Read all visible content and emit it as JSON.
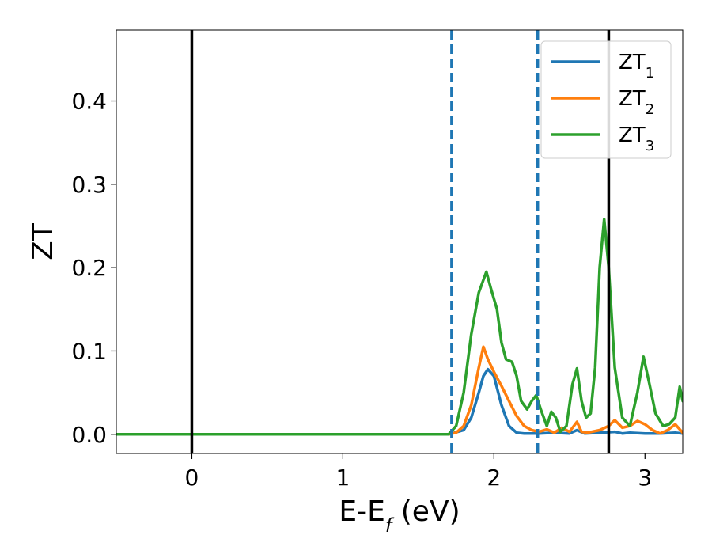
{
  "chart_data": {
    "type": "line",
    "xlabel": {
      "main": "E-E",
      "sub": "f",
      "unit": " (eV)"
    },
    "ylabel": "ZT",
    "xlim": [
      -0.5,
      3.25
    ],
    "ylim": [
      -0.023,
      0.485
    ],
    "x_ticks": [
      0,
      1,
      2,
      3
    ],
    "x_tick_labels": [
      "0",
      "1",
      "2",
      "3"
    ],
    "y_ticks": [
      0.0,
      0.1,
      0.2,
      0.3,
      0.4
    ],
    "y_tick_labels": [
      "0.0",
      "0.1",
      "0.2",
      "0.3",
      "0.4"
    ],
    "grid": false,
    "legend_position": "top-right",
    "vertical_lines": [
      {
        "x": 0.0,
        "style": "solid",
        "color": "#000000"
      },
      {
        "x": 1.72,
        "style": "dashed",
        "color": "#1f77b4"
      },
      {
        "x": 2.29,
        "style": "dashed",
        "color": "#1f77b4"
      },
      {
        "x": 2.76,
        "style": "solid",
        "color": "#000000"
      }
    ],
    "series": [
      {
        "name": {
          "main": "ZT",
          "sub": "1"
        },
        "color": "#1f77b4",
        "x": [
          -0.5,
          1.7,
          1.8,
          1.85,
          1.9,
          1.93,
          1.96,
          2.0,
          2.05,
          2.1,
          2.15,
          2.2,
          2.3,
          2.4,
          2.5,
          2.55,
          2.6,
          2.7,
          2.8,
          2.85,
          2.9,
          3.0,
          3.1,
          3.2,
          3.25
        ],
        "y": [
          0.0,
          0.0,
          0.005,
          0.02,
          0.05,
          0.07,
          0.078,
          0.07,
          0.035,
          0.01,
          0.002,
          0.001,
          0.001,
          0.002,
          0.001,
          0.005,
          0.001,
          0.002,
          0.003,
          0.001,
          0.002,
          0.001,
          0.001,
          0.002,
          0.001
        ]
      },
      {
        "name": {
          "main": "ZT",
          "sub": "2"
        },
        "color": "#ff7f0e",
        "x": [
          -0.5,
          1.7,
          1.75,
          1.8,
          1.85,
          1.9,
          1.93,
          1.96,
          2.0,
          2.05,
          2.1,
          2.15,
          2.2,
          2.25,
          2.3,
          2.35,
          2.4,
          2.45,
          2.5,
          2.55,
          2.58,
          2.62,
          2.7,
          2.76,
          2.8,
          2.85,
          2.9,
          2.95,
          3.0,
          3.05,
          3.1,
          3.15,
          3.2,
          3.25
        ],
        "y": [
          0.0,
          0.0,
          0.002,
          0.01,
          0.035,
          0.08,
          0.105,
          0.09,
          0.075,
          0.058,
          0.04,
          0.022,
          0.01,
          0.005,
          0.003,
          0.006,
          0.002,
          0.008,
          0.003,
          0.015,
          0.003,
          0.002,
          0.005,
          0.01,
          0.017,
          0.008,
          0.01,
          0.016,
          0.012,
          0.005,
          0.001,
          0.005,
          0.012,
          0.002
        ]
      },
      {
        "name": {
          "main": "ZT",
          "sub": "3"
        },
        "color": "#2ca02c",
        "x": [
          -0.5,
          1.7,
          1.75,
          1.8,
          1.85,
          1.9,
          1.95,
          1.98,
          2.02,
          2.05,
          2.08,
          2.12,
          2.15,
          2.18,
          2.22,
          2.25,
          2.28,
          2.31,
          2.35,
          2.38,
          2.41,
          2.44,
          2.48,
          2.52,
          2.55,
          2.58,
          2.61,
          2.64,
          2.67,
          2.7,
          2.73,
          2.76,
          2.8,
          2.85,
          2.9,
          2.95,
          2.99,
          3.03,
          3.07,
          3.12,
          3.16,
          3.2,
          3.23,
          3.25
        ],
        "y": [
          0.0,
          0.0,
          0.01,
          0.05,
          0.12,
          0.17,
          0.195,
          0.175,
          0.15,
          0.11,
          0.09,
          0.087,
          0.07,
          0.04,
          0.03,
          0.04,
          0.047,
          0.03,
          0.01,
          0.027,
          0.02,
          0.003,
          0.01,
          0.06,
          0.079,
          0.04,
          0.02,
          0.025,
          0.08,
          0.2,
          0.258,
          0.2,
          0.08,
          0.02,
          0.01,
          0.05,
          0.093,
          0.06,
          0.025,
          0.01,
          0.012,
          0.02,
          0.057,
          0.04
        ]
      }
    ]
  }
}
